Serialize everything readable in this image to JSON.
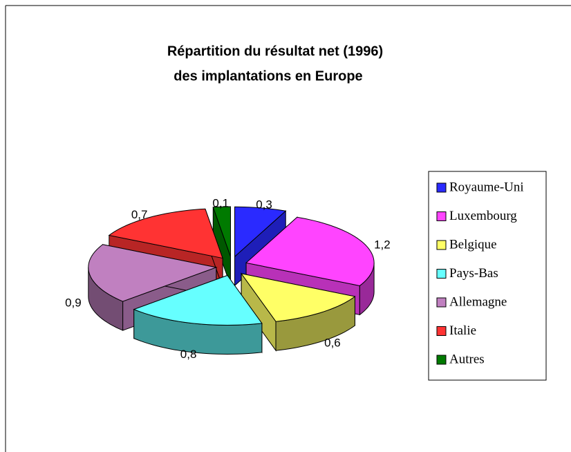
{
  "chart_data": {
    "type": "pie3d",
    "title": [
      "Répartition du résultat net  (1996)",
      "des implantations en Europe"
    ],
    "categories": [
      "Royaume-Uni",
      "Luxembourg",
      "Belgique",
      "Pays-Bas",
      "Allemagne",
      "Italie",
      "Autres"
    ],
    "values": [
      0.3,
      1.2,
      0.6,
      0.8,
      0.9,
      0.7,
      0.1
    ],
    "value_labels": [
      "0,3",
      "1,2",
      "0,6",
      "0,8",
      "0,9",
      "0,7",
      "0,1"
    ],
    "colors": [
      "#2a2aff",
      "#ff44ff",
      "#ffff66",
      "#66ffff",
      "#c080c0",
      "#ff3333",
      "#007a00"
    ],
    "legend": "right"
  }
}
